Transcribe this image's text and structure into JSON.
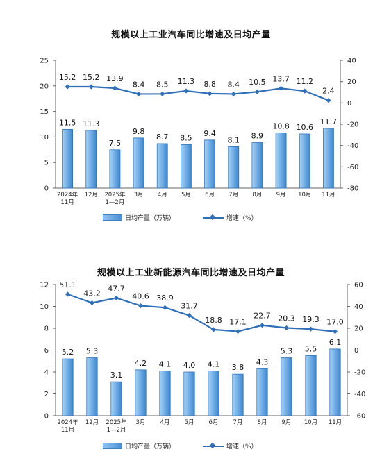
{
  "chart_data": [
    {
      "type": "bar",
      "title": "规模以上工业汽车同比增速及日均产量",
      "categories": [
        [
          "2024年",
          "11月"
        ],
        [
          "12月"
        ],
        [
          "2025年",
          "1—2月"
        ],
        [
          "3月"
        ],
        [
          "4月"
        ],
        [
          "5月"
        ],
        [
          "6月"
        ],
        [
          "7月"
        ],
        [
          "8月"
        ],
        [
          "9月"
        ],
        [
          "10月"
        ],
        [
          "11月"
        ]
      ],
      "series": [
        {
          "name": "日均产量（万辆）",
          "type": "bar",
          "axis": "left",
          "values": [
            11.5,
            11.3,
            7.5,
            9.8,
            8.7,
            8.5,
            9.4,
            8.1,
            8.9,
            10.8,
            10.6,
            11.7
          ],
          "labels": [
            "11.5",
            "11.3",
            "7.5",
            "9.8",
            "8.7",
            "8.5",
            "9.4",
            "8.1",
            "8.9",
            "10.8",
            "10.6",
            "11.7"
          ]
        },
        {
          "name": "增速（%）",
          "type": "line",
          "axis": "right",
          "values": [
            15.2,
            15.2,
            13.9,
            8.4,
            8.5,
            11.3,
            8.8,
            8.4,
            10.5,
            13.7,
            11.2,
            2.4
          ],
          "labels": [
            "15.2",
            "15.2",
            "13.9",
            "8.4",
            "8.5",
            "11.3",
            "8.8",
            "8.4",
            "10.5",
            "13.7",
            "11.2",
            "2.4"
          ]
        }
      ],
      "ylim_left": [
        0,
        25
      ],
      "yticks_left": [
        "0",
        "5",
        "10",
        "15",
        "20",
        "25"
      ],
      "ylim_right": [
        -80,
        40
      ],
      "yticks_right": [
        "-80",
        "-60",
        "-40",
        "-20",
        "0",
        "20",
        "40"
      ],
      "grid": false,
      "legend_position": "bottom"
    },
    {
      "type": "bar",
      "title": "规模以上工业新能源汽车同比增速及日均产量",
      "categories": [
        [
          "2024年",
          "11月"
        ],
        [
          "12月"
        ],
        [
          "2025年",
          "1—2月"
        ],
        [
          "3月"
        ],
        [
          "4月"
        ],
        [
          "5月"
        ],
        [
          "6月"
        ],
        [
          "7月"
        ],
        [
          "8月"
        ],
        [
          "9月"
        ],
        [
          "10月"
        ],
        [
          "11月"
        ]
      ],
      "series": [
        {
          "name": "日均产量（万辆）",
          "type": "bar",
          "axis": "left",
          "values": [
            5.2,
            5.3,
            3.1,
            4.2,
            4.1,
            4.0,
            4.1,
            3.8,
            4.3,
            5.3,
            5.5,
            6.1
          ],
          "labels": [
            "5.2",
            "5.3",
            "3.1",
            "4.2",
            "4.1",
            "4.0",
            "4.1",
            "3.8",
            "4.3",
            "5.3",
            "5.5",
            "6.1"
          ]
        },
        {
          "name": "增速（%）",
          "type": "line",
          "axis": "right",
          "values": [
            51.1,
            43.2,
            47.7,
            40.6,
            38.9,
            31.7,
            18.8,
            17.1,
            22.7,
            20.3,
            19.3,
            17.0
          ],
          "labels": [
            "51.1",
            "43.2",
            "47.7",
            "40.6",
            "38.9",
            "31.7",
            "18.8",
            "17.1",
            "22.7",
            "20.3",
            "19.3",
            "17.0"
          ]
        }
      ],
      "ylim_left": [
        0,
        12
      ],
      "yticks_left": [
        "0",
        "2",
        "4",
        "6",
        "8",
        "10",
        "12"
      ],
      "ylim_right": [
        -60,
        60
      ],
      "yticks_right": [
        "-60",
        "-40",
        "-20",
        "0",
        "20",
        "40",
        "60"
      ],
      "grid": false,
      "legend_position": "bottom"
    }
  ]
}
